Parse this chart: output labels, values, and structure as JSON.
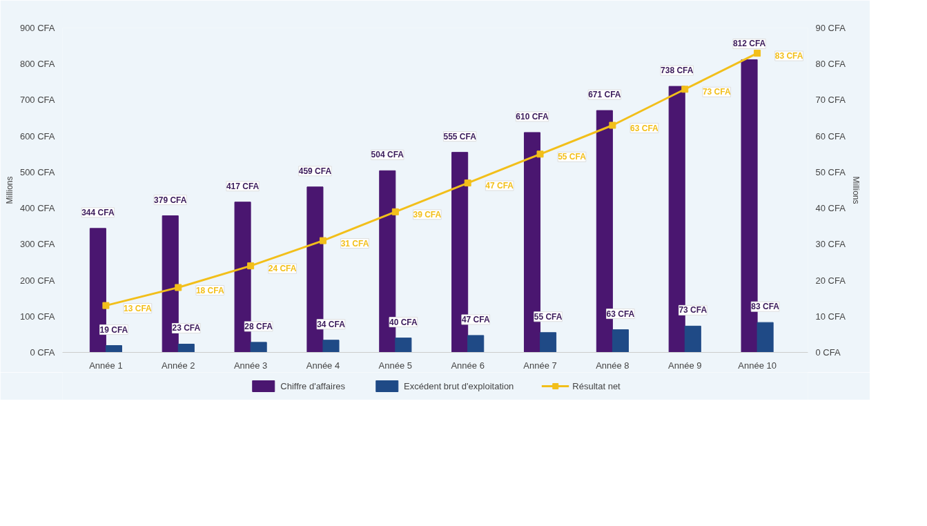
{
  "chart_data": {
    "type": "bar",
    "ylabel": "Millions",
    "y2label": "Millions",
    "categories": [
      "Année 1",
      "Année 2",
      "Année 3",
      "Année 4",
      "Année 5",
      "Année 6",
      "Année 7",
      "Année 8",
      "Année 9",
      "Année 10"
    ],
    "series": [
      {
        "name": "Chiffre d'affaires",
        "color": "#4a1670",
        "values": [
          344,
          379,
          417,
          459,
          504,
          555,
          610,
          671,
          738,
          812
        ],
        "value_labels": [
          "344 CFA",
          "379 CFA",
          "417 CFA",
          "459 CFA",
          "504 CFA",
          "555 CFA",
          "610 CFA",
          "671 CFA",
          "738 CFA",
          "812 CFA"
        ]
      },
      {
        "name": "Excédent brut d'exploitation",
        "color": "#1f4a86",
        "values": [
          19,
          23,
          28,
          34,
          40,
          47,
          55,
          63,
          73,
          83
        ],
        "value_labels": [
          "19 CFA",
          "23 CFA",
          "28 CFA",
          "34 CFA",
          "40 CFA",
          "47 CFA",
          "55 CFA",
          "63 CFA",
          "73 CFA",
          "83 CFA"
        ]
      },
      {
        "name": "Résultat net",
        "type": "line",
        "axis": "y2",
        "color": "#f2bf1a",
        "marker": "square",
        "values": [
          13,
          18,
          24,
          31,
          39,
          47,
          55,
          63,
          73,
          83
        ],
        "value_labels": [
          "13 CFA",
          "18 CFA",
          "24 CFA",
          "31 CFA",
          "39 CFA",
          "47 CFA",
          "55 CFA",
          "63 CFA",
          "73 CFA",
          "83 CFA"
        ]
      }
    ],
    "ylim": [
      0,
      900
    ],
    "yticks": [
      {
        "value": 0,
        "label": "0 CFA"
      },
      {
        "value": 100,
        "label": "100 CFA"
      },
      {
        "value": 200,
        "label": "200 CFA"
      },
      {
        "value": 300,
        "label": "300 CFA"
      },
      {
        "value": 400,
        "label": "400 CFA"
      },
      {
        "value": 500,
        "label": "500 CFA"
      },
      {
        "value": 600,
        "label": "600 CFA"
      },
      {
        "value": 700,
        "label": "700 CFA"
      },
      {
        "value": 800,
        "label": "800 CFA"
      },
      {
        "value": 900,
        "label": "900 CFA"
      }
    ],
    "y2lim": [
      0,
      90
    ],
    "y2ticks": [
      {
        "value": 0,
        "label": "0 CFA"
      },
      {
        "value": 10,
        "label": "10 CFA"
      },
      {
        "value": 20,
        "label": "20 CFA"
      },
      {
        "value": 30,
        "label": "30 CFA"
      },
      {
        "value": 40,
        "label": "40 CFA"
      },
      {
        "value": 50,
        "label": "50 CFA"
      },
      {
        "value": 60,
        "label": "60 CFA"
      },
      {
        "value": 70,
        "label": "70 CFA"
      },
      {
        "value": 80,
        "label": "80 CFA"
      },
      {
        "value": 90,
        "label": "90 CFA"
      }
    ],
    "grid": false,
    "legend": "bottom"
  }
}
